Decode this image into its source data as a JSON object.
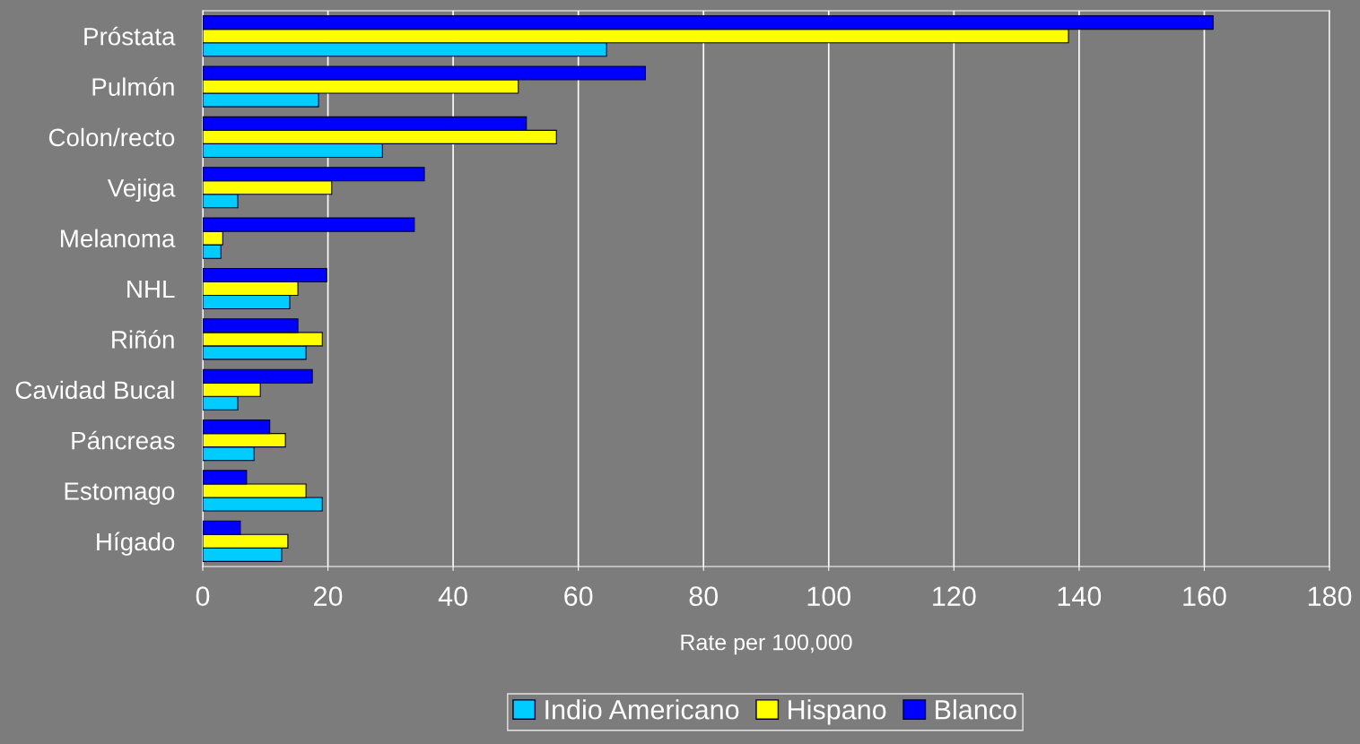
{
  "chart_data": {
    "type": "bar",
    "orientation": "horizontal",
    "xlabel": "Rate per 100,000",
    "categories": [
      "Próstata",
      "Pulmón",
      "Colon/recto",
      "Vejiga",
      "Melanoma",
      "NHL",
      "Riñón",
      "Cavidad Bucal",
      "Páncreas",
      "Estomago",
      "Hígado"
    ],
    "series": [
      {
        "name": "Indio Americano",
        "color": "#00ccff",
        "values": [
          64.5,
          18.5,
          28.7,
          5.6,
          2.9,
          13.9,
          16.5,
          5.6,
          8.2,
          19.1,
          12.6
        ]
      },
      {
        "name": "Hispano",
        "color": "#ffff00",
        "values": [
          138.3,
          50.4,
          56.5,
          20.6,
          3.2,
          15.2,
          19.1,
          9.2,
          13.2,
          16.5,
          13.6
        ]
      },
      {
        "name": "Blanco",
        "color": "#0000ff",
        "values": [
          161.4,
          70.7,
          51.7,
          35.4,
          33.8,
          19.8,
          15.2,
          17.5,
          10.7,
          7.0,
          6.0
        ]
      }
    ],
    "xlim": [
      0,
      180
    ],
    "xticks": [
      0,
      20,
      40,
      60,
      80,
      100,
      120,
      140,
      160,
      180
    ],
    "grid": "x",
    "legend": "bottom"
  }
}
